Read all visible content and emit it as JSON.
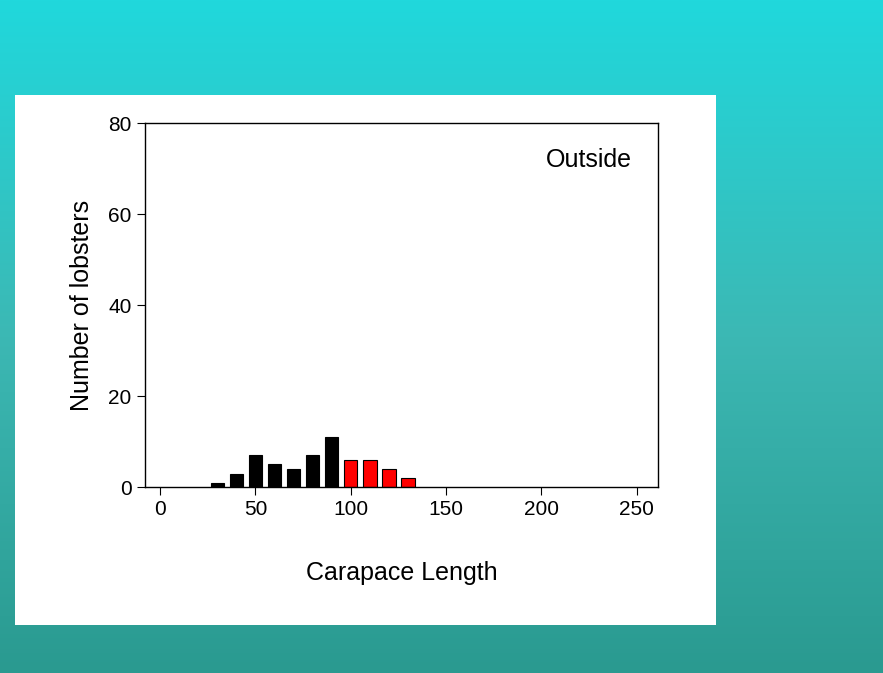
{
  "chart_data": {
    "type": "histogram",
    "xlabel": "Carapace Length",
    "ylabel": "Number of lobsters",
    "annotation": "Outside",
    "bins": [
      25,
      35,
      45,
      55,
      65,
      75,
      85,
      95,
      105,
      115,
      125,
      135
    ],
    "values": [
      1,
      3,
      7,
      5,
      4,
      7,
      11,
      6,
      6,
      4,
      2
    ],
    "colors": [
      "#000000",
      "#000000",
      "#000000",
      "#000000",
      "#000000",
      "#000000",
      "#000000",
      "#ff0000",
      "#ff0000",
      "#ff0000",
      "#ff0000"
    ],
    "xlim": [
      -8,
      261
    ],
    "ylim": [
      0,
      80
    ],
    "xticks": [
      0,
      50,
      100,
      150,
      200,
      250
    ],
    "yticks": [
      0,
      20,
      40,
      60,
      80
    ]
  }
}
